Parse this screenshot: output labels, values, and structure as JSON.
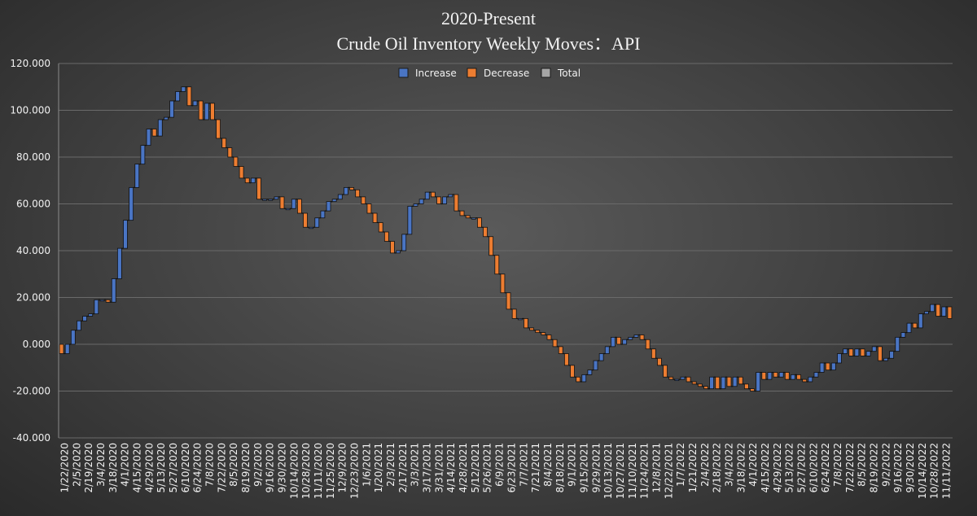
{
  "chart_data": {
    "type": "waterfall",
    "title_lines": [
      "2020-Present",
      "Crude Oil Inventory Weekly Moves：API"
    ],
    "legend": [
      "Increase",
      "Decrease",
      "Total"
    ],
    "legend_position": "top-center",
    "ylim": [
      -40,
      120
    ],
    "yticks": [
      "120.000",
      "100.000",
      "80.000",
      "60.000",
      "40.000",
      "20.000",
      "0.000",
      "-20.000",
      "-40.000"
    ],
    "ytick_values": [
      120,
      100,
      80,
      60,
      40,
      20,
      0,
      -20,
      -40
    ],
    "x_tick_labels": [
      "1/22/2020",
      "2/5/2020",
      "2/19/2020",
      "3/4/2020",
      "3/18/2020",
      "4/1/2020",
      "4/15/2020",
      "4/29/2020",
      "5/13/2020",
      "5/27/2020",
      "6/10/2020",
      "6/24/2020",
      "7/8/2020",
      "7/22/2020",
      "8/5/2020",
      "8/19/2020",
      "9/2/2020",
      "9/16/2020",
      "9/30/2020",
      "10/14/2020",
      "10/28/2020",
      "11/11/2020",
      "11/25/2020",
      "12/9/2020",
      "12/23/2020",
      "1/6/2021",
      "1/20/2021",
      "2/3/2021",
      "2/17/2021",
      "3/3/2021",
      "3/17/2021",
      "3/31/2021",
      "4/14/2021",
      "4/28/2021",
      "5/12/2021",
      "5/26/2021",
      "6/9/2021",
      "6/23/2021",
      "7/7/2021",
      "7/21/2021",
      "8/4/2021",
      "8/18/2021",
      "9/1/2021",
      "9/15/2021",
      "9/29/2021",
      "10/13/2021",
      "10/27/2021",
      "11/10/2021",
      "11/24/2021",
      "12/8/2021",
      "12/22/2021",
      "1/7/2022",
      "1/21/2022",
      "2/4/2022",
      "2/18/2022",
      "3/4/2022",
      "3/18/2022",
      "4/1/2022",
      "4/15/2022",
      "4/29/2022",
      "5/13/2022",
      "5/27/2022",
      "6/10/2022",
      "6/24/2022",
      "7/8/2022",
      "7/22/2022",
      "8/5/2022",
      "8/19/2022",
      "9/2/2022",
      "9/16/2022",
      "9/30/2022",
      "10/14/2022",
      "10/28/2022",
      "11/11/2022"
    ],
    "start_value": 0,
    "cumulative_levels": [
      -4,
      0,
      6,
      10,
      12,
      13,
      19,
      19,
      18,
      28,
      41,
      53,
      67,
      77,
      85,
      92,
      89,
      96,
      97,
      104,
      108,
      110,
      102,
      104,
      96,
      103,
      96,
      88,
      84,
      80,
      76,
      71,
      69,
      71,
      62,
      62,
      62,
      63,
      58,
      58,
      62,
      56,
      50,
      50,
      54,
      57,
      61,
      62,
      64,
      67,
      66,
      63,
      60,
      56,
      52,
      48,
      44,
      39,
      40,
      47,
      59,
      60,
      62,
      65,
      63,
      60,
      63,
      64,
      57,
      55,
      54,
      54,
      50,
      46,
      38,
      30,
      22,
      15,
      11,
      11,
      7,
      6,
      5,
      4,
      2,
      -1,
      -4,
      -9,
      -14,
      -16,
      -13,
      -11,
      -7,
      -4,
      -1,
      3,
      0,
      2,
      3,
      4,
      2,
      -2,
      -6,
      -9,
      -14,
      -15,
      -15,
      -14,
      -16,
      -17,
      -18,
      -19,
      -14,
      -19,
      -14,
      -18,
      -14,
      -17,
      -19,
      -20,
      -12,
      -15,
      -12,
      -14,
      -12,
      -15,
      -13,
      -15,
      -16,
      -14,
      -12,
      -8,
      -11,
      -8,
      -4,
      -2,
      -5,
      -2,
      -5,
      -3,
      -1,
      -7,
      -6,
      -3,
      3,
      5,
      9,
      7,
      13,
      14,
      17,
      12,
      16,
      11
    ],
    "colors": {
      "increase": "#4a75c4",
      "decrease": "#ed7d31",
      "total": "#a5a5a5",
      "grid": "#6a6a6a",
      "text": "#f2f2f2"
    }
  }
}
